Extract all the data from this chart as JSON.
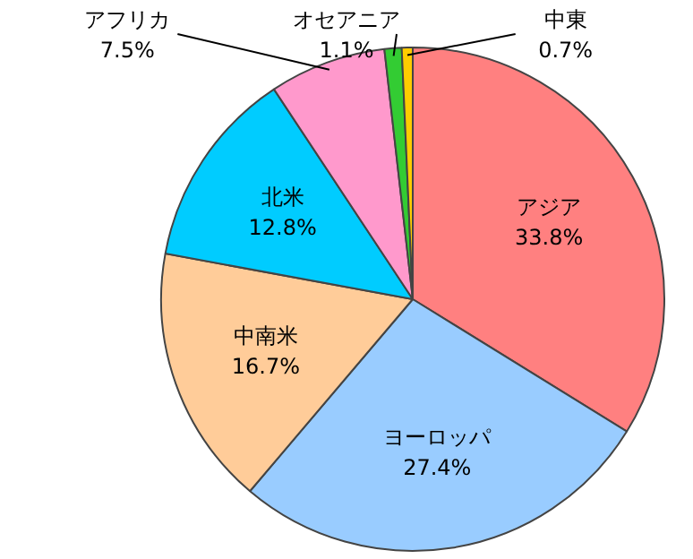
{
  "chart_data": {
    "type": "pie",
    "categories": [
      "アジア",
      "ヨーロッパ",
      "中南米",
      "北米",
      "アフリカ",
      "オセアニア",
      "中東"
    ],
    "values": [
      33.8,
      27.4,
      16.7,
      12.8,
      7.5,
      1.1,
      0.7
    ],
    "colors": [
      "#ff8080",
      "#99ccff",
      "#ffcc99",
      "#00ccff",
      "#ff99cc",
      "#33cc33",
      "#ffcc00"
    ],
    "value_labels": [
      "33.8%",
      "27.4%",
      "16.7%",
      "12.8%",
      "7.5%",
      "1.1%",
      "0.7%"
    ],
    "legend": false
  }
}
